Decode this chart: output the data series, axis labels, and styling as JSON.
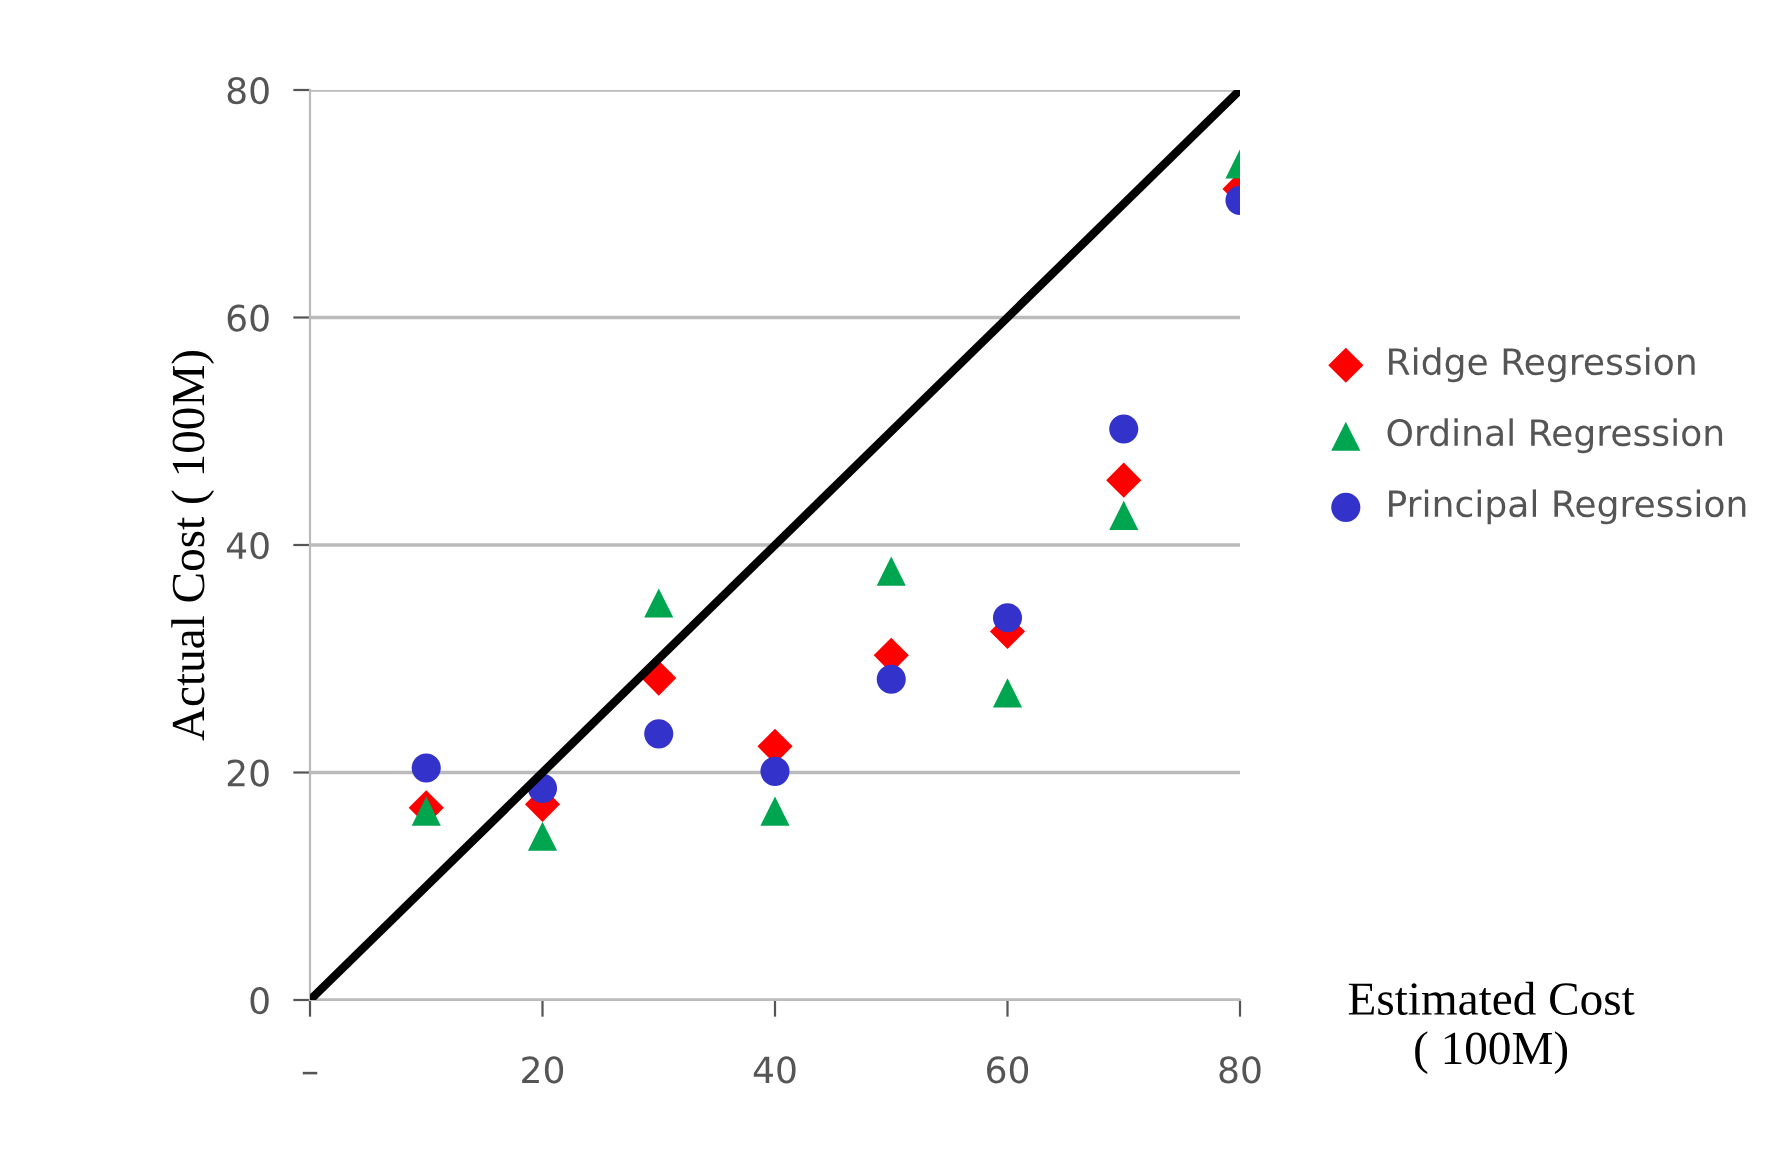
{
  "chart_data": {
    "type": "scatter",
    "xlabel": "Estimated Cost\n( 100M)",
    "ylabel": "Actual Cost ( 100M)",
    "x": [
      10,
      20,
      30,
      40,
      50,
      60,
      70,
      80
    ],
    "series": [
      {
        "name": "Ridge Regression",
        "color": "#ff0000",
        "marker": "diamond",
        "values": [
          16.9,
          17.2,
          28.3,
          22.3,
          30.3,
          32.4,
          45.7,
          71.3
        ]
      },
      {
        "name": "Ordinal Regression",
        "color": "#00a550",
        "marker": "triangle",
        "values": [
          16.6,
          14.4,
          34.9,
          16.6,
          37.7,
          27.0,
          42.6,
          73.5
        ]
      },
      {
        "name": "Principal Regression",
        "color": "#3333cc",
        "marker": "circle",
        "values": [
          20.4,
          18.6,
          23.4,
          20.1,
          28.2,
          33.6,
          50.2,
          70.3
        ]
      },
      {
        "type": "line",
        "color": "#000000",
        "marker": "none",
        "x": [
          0,
          80
        ],
        "values": [
          0,
          80
        ]
      }
    ],
    "xlim": [
      0,
      80
    ],
    "ylim": [
      0,
      80
    ],
    "xticks": [
      {
        "value": 0,
        "label": "–"
      },
      20,
      40,
      60,
      80
    ],
    "yticks": [
      0,
      20,
      40,
      60,
      80
    ],
    "grid": "y",
    "legend": "right"
  }
}
